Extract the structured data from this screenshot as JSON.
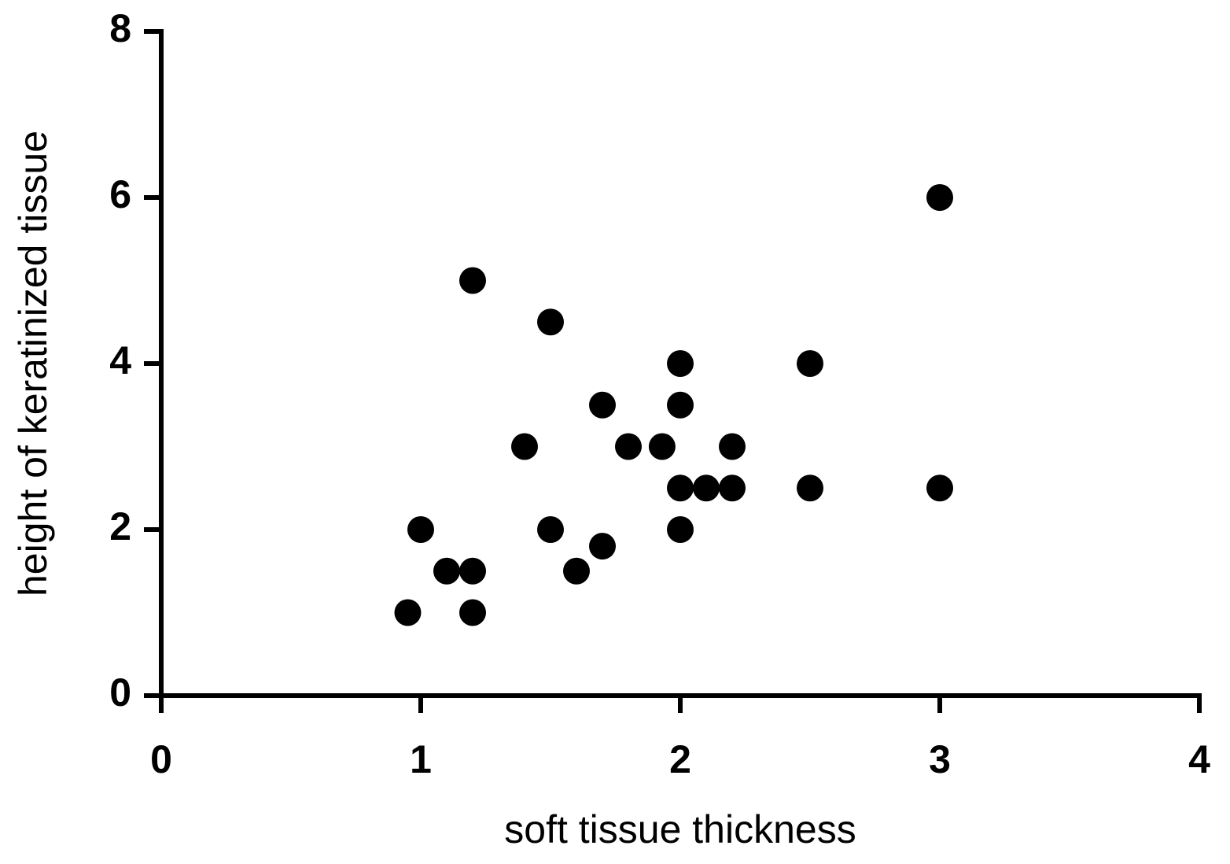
{
  "chart_data": {
    "type": "scatter",
    "x_label": "soft tissue thickness",
    "y_label": "height of keratinized tissue",
    "x": [
      0.95,
      1.0,
      1.1,
      1.2,
      1.2,
      1.2,
      1.4,
      1.5,
      1.5,
      1.6,
      1.7,
      1.7,
      1.8,
      1.93,
      2.0,
      2.0,
      2.0,
      2.0,
      2.1,
      2.2,
      2.2,
      2.5,
      2.5,
      3.0,
      3.0
    ],
    "values": [
      1.0,
      2.0,
      1.5,
      1.5,
      1.0,
      5.0,
      3.0,
      4.5,
      2.0,
      1.5,
      3.5,
      1.8,
      3.0,
      3.0,
      4.0,
      3.5,
      2.5,
      2.0,
      2.5,
      3.0,
      2.5,
      4.0,
      2.5,
      6.0,
      2.5
    ],
    "color": "#000000",
    "xlim": [
      0,
      4
    ],
    "xticks": [
      0,
      1,
      2,
      3,
      4
    ],
    "ylim": [
      0,
      8
    ],
    "yticks": [
      0,
      2,
      4,
      6,
      8
    ],
    "grid": false
  }
}
